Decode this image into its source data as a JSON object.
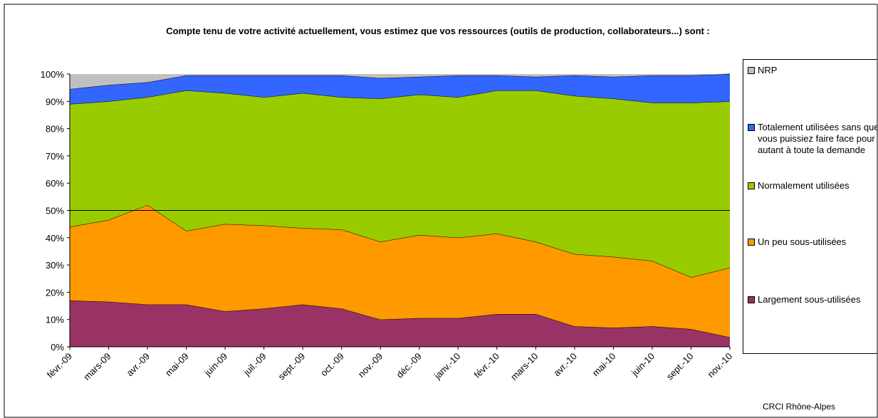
{
  "chart_data": {
    "type": "stacked_area",
    "title": "Compte tenu de votre activité actuellement, vous estimez que vos ressources (outils de production, collaborateurs...) sont :",
    "source": "CRCI Rhône-Alpes",
    "categories": [
      "févr.-09",
      "mars-09",
      "avr.-09",
      "mai-09",
      "juin-09",
      "juil.-09",
      "sept.-09",
      "oct.-09",
      "nov.-09",
      "déc.-09",
      "janv.-10",
      "févr.-10",
      "mars-10",
      "avr.-10",
      "mai-10",
      "juin-10",
      "sept.-10",
      "nov.-10"
    ],
    "series": [
      {
        "name": "Largement sous-utilisées",
        "color": "#993366",
        "values": [
          17,
          16.5,
          15.5,
          15.5,
          13,
          14,
          15.5,
          14,
          10,
          10.5,
          10.5,
          12,
          12,
          7.5,
          7,
          7.5,
          6.5,
          3.5
        ]
      },
      {
        "name": "Un peu sous-utilisées",
        "color": "#ff9900",
        "values": [
          27,
          30,
          36.5,
          27,
          32,
          30.5,
          28,
          29,
          28.5,
          30.5,
          29.5,
          29.5,
          26.5,
          26.5,
          26,
          24,
          19,
          25.5
        ]
      },
      {
        "name": "Normalement utilisées",
        "color": "#99cc00",
        "values": [
          45,
          43.5,
          39.5,
          51.5,
          48,
          47,
          49.5,
          48.5,
          52.5,
          51.5,
          51.5,
          52.5,
          55.5,
          58,
          58,
          58,
          64,
          61
        ]
      },
      {
        "name": "Totalement utilisées sans que vous puissiez faire face pour autant à toute la demande",
        "color": "#3366ff",
        "values": [
          5.5,
          6,
          5.5,
          5.5,
          6.5,
          8,
          6.5,
          8,
          7.5,
          6.5,
          8,
          5.5,
          5,
          7.5,
          8,
          10,
          10,
          10
        ]
      },
      {
        "name": "NRP",
        "color": "#c0c0c0",
        "values": [
          5.5,
          4,
          3,
          0.5,
          0.5,
          0.5,
          0.5,
          0.5,
          1.5,
          1,
          0.5,
          0.5,
          1,
          0.5,
          1,
          0.5,
          0.5,
          0
        ]
      }
    ],
    "reference_line": 50,
    "ylim": [
      0,
      100
    ],
    "yticks": [
      {
        "value": 0,
        "label": "0%"
      },
      {
        "value": 10,
        "label": "10%"
      },
      {
        "value": 20,
        "label": "20%"
      },
      {
        "value": 30,
        "label": "30%"
      },
      {
        "value": 40,
        "label": "40%"
      },
      {
        "value": 50,
        "label": "50%"
      },
      {
        "value": 60,
        "label": "60%"
      },
      {
        "value": 70,
        "label": "70%"
      },
      {
        "value": 80,
        "label": "80%"
      },
      {
        "value": 90,
        "label": "90%"
      },
      {
        "value": 100,
        "label": "100%"
      }
    ]
  }
}
